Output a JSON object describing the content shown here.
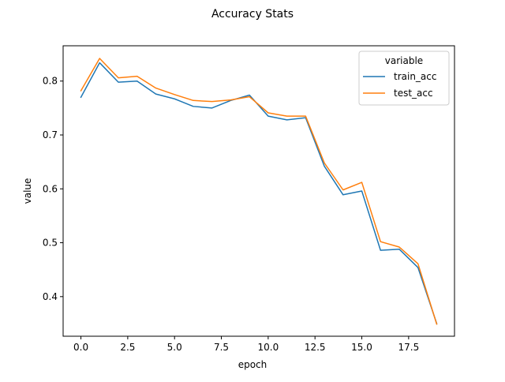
{
  "chart_data": {
    "type": "line",
    "title": "Accuracy Stats",
    "xlabel": "epoch",
    "ylabel": "value",
    "xlim": [
      -0.95,
      19.95
    ],
    "ylim": [
      0.3265,
      0.8655
    ],
    "x_ticks": [
      0.0,
      2.5,
      5.0,
      7.5,
      10.0,
      12.5,
      15.0,
      17.5
    ],
    "x_tick_labels": [
      "0.0",
      "2.5",
      "5.0",
      "7.5",
      "10.0",
      "12.5",
      "15.0",
      "17.5"
    ],
    "y_ticks": [
      0.4,
      0.5,
      0.6,
      0.7,
      0.8
    ],
    "y_tick_labels": [
      "0.4",
      "0.5",
      "0.6",
      "0.7",
      "0.8"
    ],
    "grid": false,
    "legend": {
      "title": "variable",
      "placement": "top-right"
    },
    "x": [
      0,
      1,
      2,
      3,
      4,
      5,
      6,
      7,
      8,
      9,
      10,
      11,
      12,
      13,
      14,
      15,
      16,
      17,
      18,
      19
    ],
    "series": [
      {
        "name": "train_acc",
        "color": "#1f77b4",
        "values": [
          0.77,
          0.834,
          0.798,
          0.8,
          0.776,
          0.767,
          0.753,
          0.75,
          0.764,
          0.774,
          0.735,
          0.728,
          0.732,
          0.642,
          0.589,
          0.596,
          0.486,
          0.488,
          0.454,
          0.35
        ]
      },
      {
        "name": "test_acc",
        "color": "#ff7f0e",
        "values": [
          0.782,
          0.842,
          0.806,
          0.809,
          0.787,
          0.775,
          0.764,
          0.762,
          0.765,
          0.771,
          0.741,
          0.735,
          0.735,
          0.648,
          0.598,
          0.612,
          0.502,
          0.492,
          0.461,
          0.349
        ]
      }
    ]
  }
}
